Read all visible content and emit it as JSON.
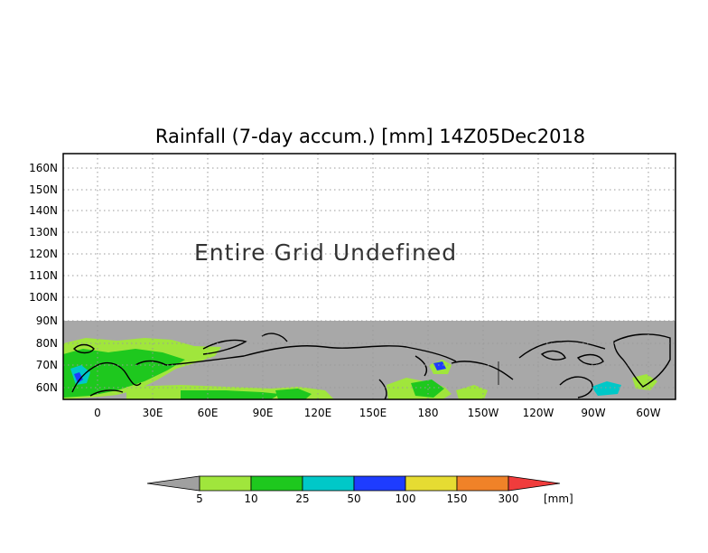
{
  "title": "Rainfall (7-day accum.) [mm] 14Z05Dec2018",
  "notice": "Entire Grid Undefined",
  "lat_labels": [
    "160N",
    "150N",
    "140N",
    "130N",
    "120N",
    "110N",
    "100N",
    "90N",
    "80N",
    "70N",
    "60N"
  ],
  "lon_labels": [
    "0",
    "30E",
    "60E",
    "90E",
    "120E",
    "150E",
    "180",
    "150W",
    "120W",
    "90W",
    "60W"
  ],
  "colorbar": {
    "unit": "[mm]",
    "thresholds": [
      "5",
      "10",
      "25",
      "50",
      "100",
      "150",
      "300"
    ],
    "colors": [
      "#a0a0a0",
      "#a0e63c",
      "#1ec81e",
      "#00c8c8",
      "#1e3cff",
      "#e6dc32",
      "#f08228",
      "#f03c3c"
    ]
  },
  "colors": {
    "undefined_fill": "#a8a8a8",
    "coastline": "#000000",
    "grid": "#9a9a9a"
  }
}
